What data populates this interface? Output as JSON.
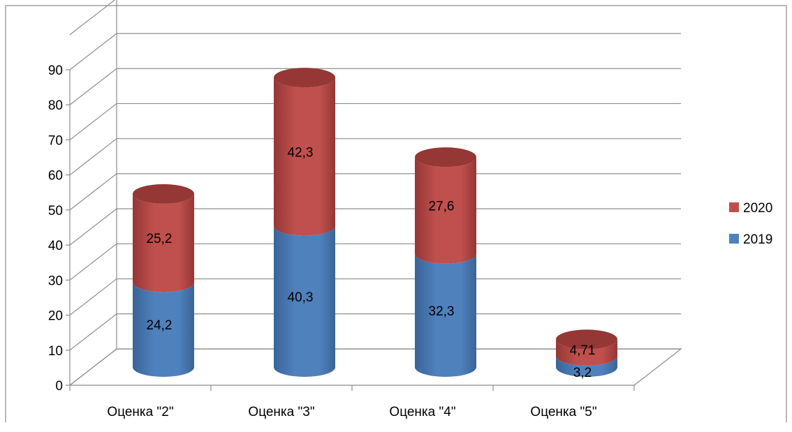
{
  "chart_data": {
    "type": "bar",
    "stacked": true,
    "style": "3d-cylinder",
    "categories": [
      "Оценка \"2\"",
      "Оценка \"3\"",
      "Оценка \"4\"",
      "Оценка \"5\""
    ],
    "series": [
      {
        "name": "2019",
        "values": [
          24.2,
          40.3,
          32.3,
          3.2
        ],
        "labels": [
          "24,2",
          "40,3",
          "32,3",
          "3,2"
        ],
        "color": "#4F81BD",
        "dark": "#3A6497"
      },
      {
        "name": "2020",
        "values": [
          25.2,
          42.3,
          27.6,
          4.71
        ],
        "labels": [
          "25,2",
          "42,3",
          "27,6",
          "4,71"
        ],
        "color": "#C0504D",
        "dark": "#953735"
      }
    ],
    "title": "",
    "xlabel": "",
    "ylabel": "",
    "ylim": [
      0,
      90
    ],
    "yticks": [
      "0",
      "10",
      "20",
      "30",
      "40",
      "50",
      "60",
      "70",
      "80",
      "90"
    ],
    "grid": true,
    "legend": {
      "placement": "right",
      "order": [
        "2020",
        "2019"
      ]
    }
  }
}
